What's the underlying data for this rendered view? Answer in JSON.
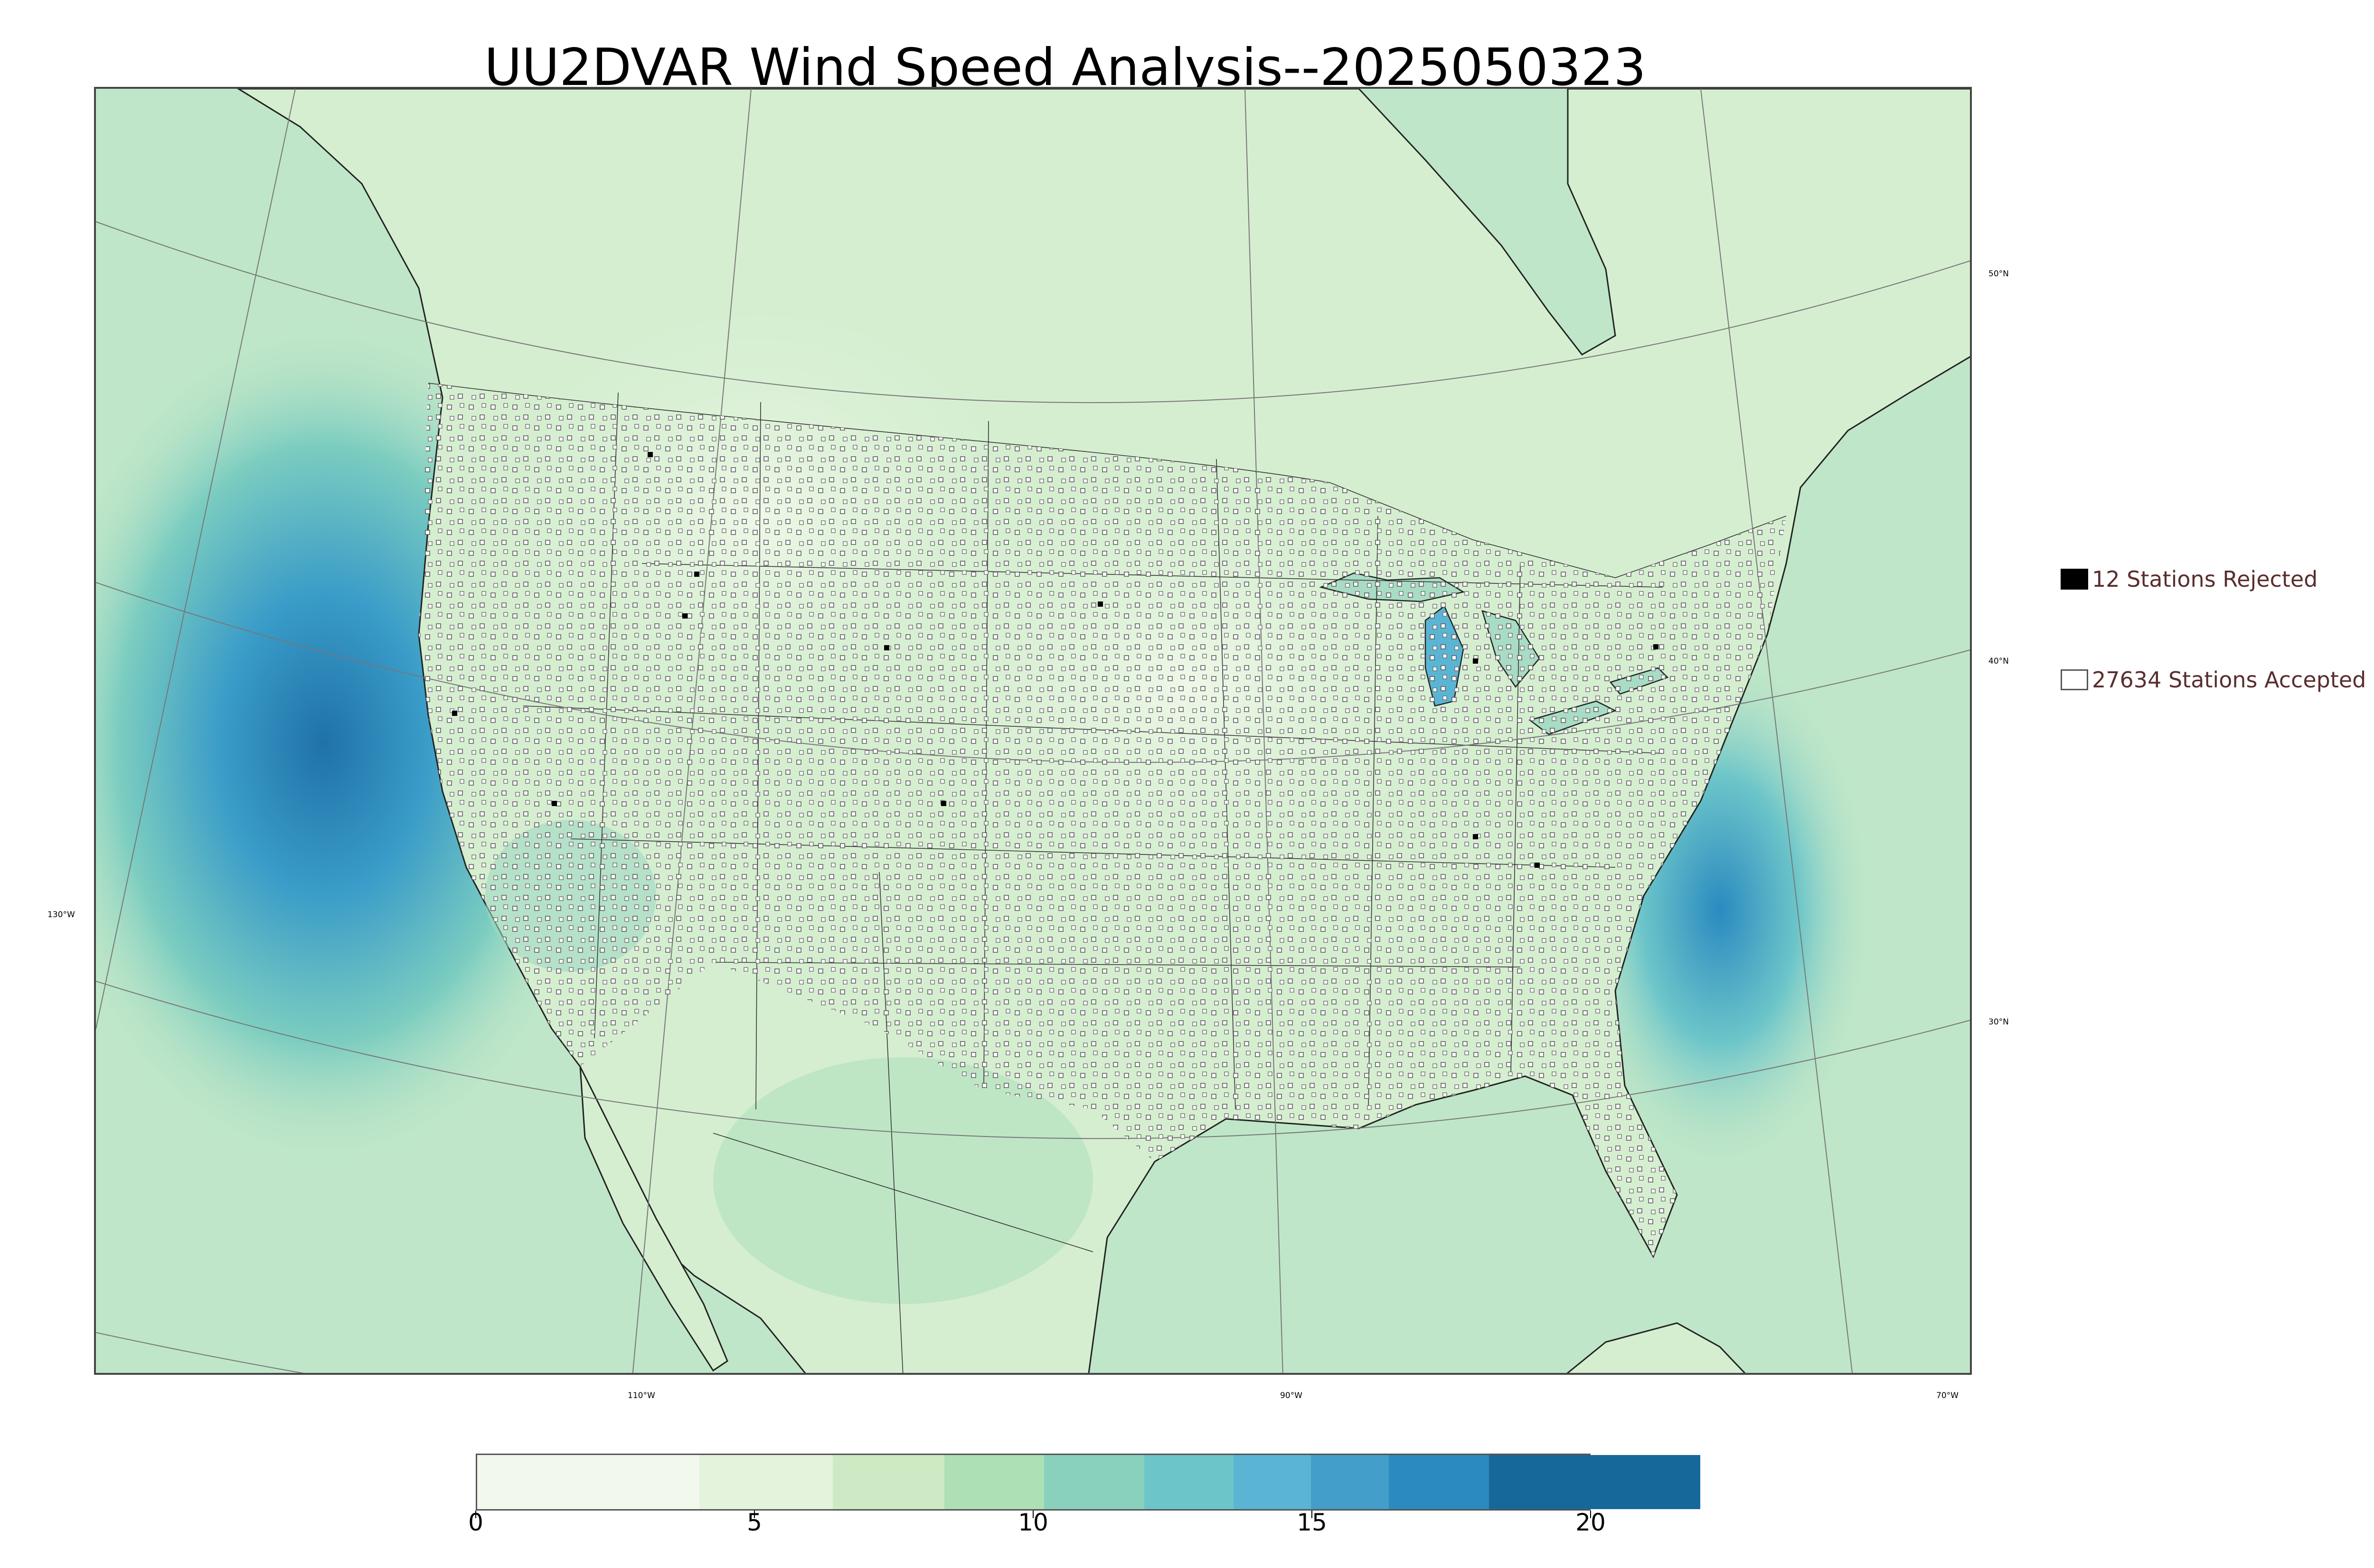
{
  "title": "UU2DVAR Wind Speed Analysis--2025050323",
  "graticule_labels": {
    "lat_50": "50°N",
    "lat_40": "40°N",
    "lat_30": "30°N",
    "lon_130": "130°W",
    "lon_110": "110°W",
    "lon_90": "90°W",
    "lon_70": "70°W"
  },
  "legend": {
    "rejected_label": "12 Stations Rejected",
    "accepted_label": "27634 Stations Accepted",
    "rejected_color": "#000000",
    "accepted_color": "#ffffff"
  },
  "colorbar": {
    "min": 0,
    "max": 20,
    "ticks": [
      "0",
      "5",
      "10",
      "15",
      "20"
    ],
    "colors": [
      "#f2f9ec",
      "#e3f3dc",
      "#cdeac4",
      "#ade0b4",
      "#8ad1bd",
      "#6cc5c9",
      "#5ab5d4",
      "#439fc9",
      "#2b8ac0",
      "#17689a"
    ]
  },
  "map_colors": {
    "land": "#d5eed0",
    "ocean": "#bfe6c8",
    "strong_wind": "#3a9cc8",
    "very_strong_wind": "#1f72a8"
  }
}
